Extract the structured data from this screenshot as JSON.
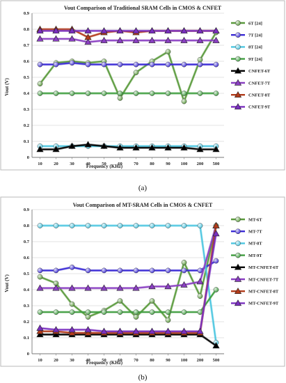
{
  "chart_data": [
    {
      "type": "line",
      "title": "Vout Comparison of Traditional SRAM Cells in CMOS & CNFET",
      "xlabel": "Frequency (KHz)",
      "ylabel": "Vout (V)",
      "caption": "(a)",
      "categories": [
        "10",
        "20",
        "30",
        "40",
        "50",
        "60",
        "70",
        "80",
        "90",
        "100",
        "200",
        "500"
      ],
      "ylim": [
        0,
        0.9
      ],
      "yticks": [
        "0",
        "0.1",
        "0.2",
        "0.3",
        "0.4",
        "0.5",
        "0.6",
        "0.7",
        "0.8",
        "0.9"
      ],
      "grid": "horizontal",
      "legend_position": "right",
      "series": [
        {
          "name": "6T [24]",
          "color": "#5a9a3c",
          "marker": "circle",
          "values": [
            0.46,
            0.59,
            0.6,
            0.59,
            0.6,
            0.37,
            0.53,
            0.6,
            0.66,
            0.35,
            0.61,
            0.78
          ]
        },
        {
          "name": "7T [24]",
          "color": "#3b2bd6",
          "marker": "circle",
          "values": [
            0.58,
            0.58,
            0.59,
            0.58,
            0.58,
            0.58,
            0.58,
            0.58,
            0.58,
            0.58,
            0.58,
            0.58
          ]
        },
        {
          "name": "8T [24]",
          "color": "#4cc6e0",
          "marker": "circle",
          "values": [
            0.07,
            0.07,
            0.07,
            0.07,
            0.07,
            0.07,
            0.07,
            0.07,
            0.07,
            0.07,
            0.07,
            0.07
          ]
        },
        {
          "name": "9T [24]",
          "color": "#3f9e3f",
          "marker": "circle",
          "values": [
            0.4,
            0.4,
            0.4,
            0.4,
            0.4,
            0.4,
            0.4,
            0.4,
            0.4,
            0.4,
            0.4,
            0.4
          ]
        },
        {
          "name": "CNFET-6T",
          "color": "#000000",
          "marker": "triangle",
          "values": [
            0.05,
            0.05,
            0.07,
            0.08,
            0.07,
            0.06,
            0.06,
            0.06,
            0.06,
            0.06,
            0.05,
            0.05
          ]
        },
        {
          "name": "CNFET-7T",
          "color": "#8a3fc2",
          "marker": "triangle",
          "values": [
            0.74,
            0.74,
            0.74,
            0.72,
            0.73,
            0.73,
            0.73,
            0.73,
            0.73,
            0.73,
            0.73,
            0.73
          ]
        },
        {
          "name": "CNFET-8T",
          "color": "#b23b1a",
          "marker": "triangle",
          "values": [
            0.8,
            0.8,
            0.8,
            0.75,
            0.78,
            0.79,
            0.78,
            0.79,
            0.79,
            0.79,
            0.79,
            0.79
          ]
        },
        {
          "name": "CNFET-9T",
          "color": "#7a2fbf",
          "marker": "triangle",
          "values": [
            0.79,
            0.79,
            0.79,
            0.79,
            0.79,
            0.79,
            0.79,
            0.79,
            0.79,
            0.79,
            0.79,
            0.79
          ]
        }
      ]
    },
    {
      "type": "line",
      "title": "Vout Comparison of MT-SRAM Cells in CMOS & CNFET",
      "xlabel": "Frequency (KHz)",
      "ylabel": "Vout (V)",
      "caption": "(b)",
      "categories": [
        "10",
        "20",
        "30",
        "40",
        "50",
        "60",
        "70",
        "80",
        "90",
        "100",
        "200",
        "500"
      ],
      "ylim": [
        0,
        0.9
      ],
      "yticks": [
        "0",
        "0.1",
        "0.2",
        "0.3",
        "0.4",
        "0.5",
        "0.6",
        "0.7",
        "0.8",
        "0.9"
      ],
      "grid": "horizontal",
      "legend_position": "right",
      "series": [
        {
          "name": "MT-6T",
          "color": "#5a9a3c",
          "marker": "circle",
          "values": [
            0.48,
            0.44,
            0.31,
            0.23,
            0.27,
            0.33,
            0.23,
            0.33,
            0.21,
            0.57,
            0.36,
            0.8
          ]
        },
        {
          "name": "MT-7T",
          "color": "#3b2bd6",
          "marker": "circle",
          "values": [
            0.52,
            0.52,
            0.54,
            0.52,
            0.52,
            0.52,
            0.52,
            0.52,
            0.52,
            0.52,
            0.52,
            0.58
          ]
        },
        {
          "name": "MT-8T",
          "color": "#4cc6e0",
          "marker": "circle",
          "values": [
            0.8,
            0.8,
            0.8,
            0.8,
            0.8,
            0.8,
            0.8,
            0.8,
            0.8,
            0.8,
            0.8,
            0.07
          ]
        },
        {
          "name": "MT-9T",
          "color": "#3f9e3f",
          "marker": "circle",
          "values": [
            0.26,
            0.26,
            0.26,
            0.26,
            0.26,
            0.26,
            0.26,
            0.26,
            0.26,
            0.26,
            0.26,
            0.4
          ]
        },
        {
          "name": "MT-CNFET-6T",
          "color": "#000000",
          "marker": "triangle",
          "values": [
            0.12,
            0.12,
            0.12,
            0.12,
            0.12,
            0.12,
            0.12,
            0.12,
            0.12,
            0.12,
            0.12,
            0.05
          ]
        },
        {
          "name": "MT-CNFET-7T",
          "color": "#8a3fc2",
          "marker": "triangle",
          "values": [
            0.41,
            0.41,
            0.41,
            0.41,
            0.41,
            0.41,
            0.41,
            0.42,
            0.42,
            0.43,
            0.45,
            0.8
          ]
        },
        {
          "name": "MT-CNFET-8T",
          "color": "#b23b1a",
          "marker": "triangle",
          "values": [
            0.14,
            0.14,
            0.13,
            0.13,
            0.13,
            0.13,
            0.13,
            0.13,
            0.13,
            0.13,
            0.13,
            0.8
          ]
        },
        {
          "name": "MT-CNFET-9T",
          "color": "#7a2fbf",
          "marker": "triangle",
          "values": [
            0.16,
            0.15,
            0.15,
            0.15,
            0.14,
            0.14,
            0.14,
            0.14,
            0.14,
            0.14,
            0.14,
            0.75
          ]
        }
      ]
    }
  ]
}
